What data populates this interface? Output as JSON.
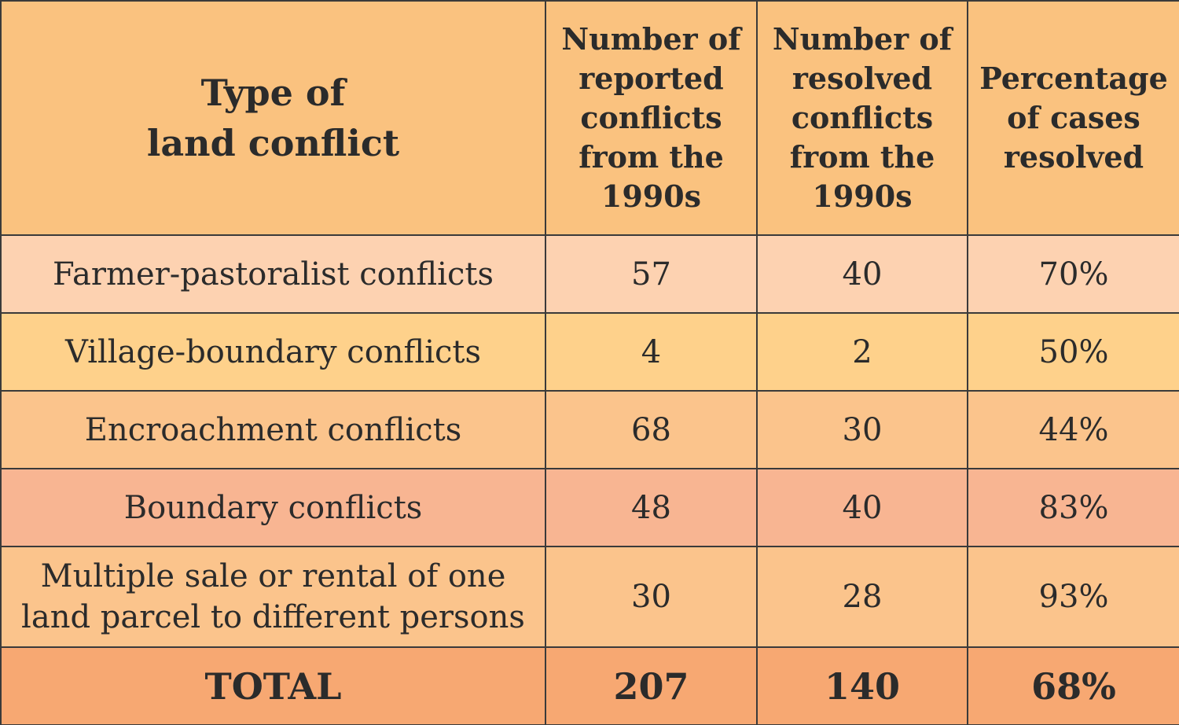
{
  "table": {
    "headers": [
      [
        "Type of",
        "land conflict"
      ],
      [
        "Number of",
        "reported",
        "conflicts",
        "from the",
        "1990s"
      ],
      [
        "Number of",
        "resolved",
        "conflicts",
        "from the",
        "1990s"
      ],
      [
        "Percentage",
        "of cases",
        "resolved"
      ]
    ],
    "rows": [
      {
        "type": [
          "Farmer-pastoralist conflicts"
        ],
        "reported": "57",
        "resolved": "40",
        "percent": "70%"
      },
      {
        "type": [
          "Village-boundary conflicts"
        ],
        "reported": "4",
        "resolved": "2",
        "percent": "50%"
      },
      {
        "type": [
          "Encroachment conflicts"
        ],
        "reported": "68",
        "resolved": "30",
        "percent": "44%"
      },
      {
        "type": [
          "Boundary conflicts"
        ],
        "reported": "48",
        "resolved": "40",
        "percent": "83%"
      },
      {
        "type": [
          "Multiple sale or rental of one",
          "land parcel to different persons"
        ],
        "reported": "30",
        "resolved": "28",
        "percent": "93%"
      }
    ],
    "total": {
      "label": "TOTAL",
      "reported": "207",
      "resolved": "140",
      "percent": "68%"
    }
  },
  "colors": {
    "header": "#fac27f",
    "row1": "#fdd2b1",
    "row2": "#fed18b",
    "row3": "#fbc48c",
    "row4": "#f8b592",
    "row5": "#fbc48c",
    "total": "#f7a872"
  }
}
